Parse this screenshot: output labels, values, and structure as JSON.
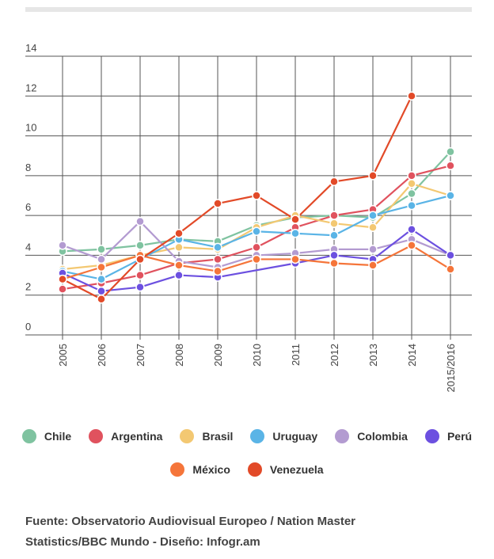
{
  "chart_data": {
    "type": "line",
    "categories": [
      "2005",
      "2006",
      "2007",
      "2008",
      "2009",
      "2010",
      "2011",
      "2012",
      "2013",
      "2014",
      "2015/2016"
    ],
    "ylim": [
      0,
      14
    ],
    "yticks": [
      0,
      2,
      4,
      6,
      8,
      10,
      12,
      14
    ],
    "grid": true,
    "series": [
      {
        "name": "Chile",
        "color": "#7fc3a0",
        "values": [
          4.2,
          4.3,
          4.5,
          4.8,
          4.7,
          5.5,
          5.9,
          6.0,
          5.9,
          7.1,
          9.2
        ]
      },
      {
        "name": "Argentina",
        "color": "#e0525e",
        "values": [
          2.3,
          2.6,
          3.0,
          3.6,
          3.8,
          4.4,
          5.4,
          6.0,
          6.3,
          8.0,
          8.5
        ]
      },
      {
        "name": "Brasil",
        "color": "#f3c872",
        "values": [
          3.3,
          3.5,
          4.0,
          4.4,
          4.3,
          5.4,
          6.0,
          5.6,
          5.4,
          7.6,
          7.0
        ]
      },
      {
        "name": "Uruguay",
        "color": "#5ab4e6",
        "values": [
          3.2,
          2.8,
          3.8,
          4.8,
          4.4,
          5.2,
          5.1,
          5.0,
          6.0,
          6.5,
          7.0
        ]
      },
      {
        "name": "Colombia",
        "color": "#b39bd1",
        "values": [
          4.5,
          3.8,
          5.7,
          3.7,
          3.4,
          4.0,
          4.1,
          4.3,
          4.3,
          4.8,
          4.0
        ]
      },
      {
        "name": "Perú",
        "color": "#6c50e0",
        "values": [
          3.1,
          2.2,
          2.4,
          3.0,
          2.9,
          null,
          3.6,
          4.0,
          3.8,
          5.3,
          4.0
        ]
      },
      {
        "name": "México",
        "color": "#f5753a",
        "values": [
          2.8,
          3.4,
          4.0,
          3.5,
          3.2,
          3.8,
          3.8,
          3.6,
          3.5,
          4.5,
          3.3
        ]
      },
      {
        "name": "Venezuela",
        "color": "#e24a28",
        "values": [
          2.8,
          1.8,
          3.8,
          5.1,
          6.6,
          7.0,
          5.8,
          7.7,
          8.0,
          12.0,
          null
        ]
      }
    ]
  },
  "source": {
    "line1": "Fuente: Observatorio Audiovisual Europeo / Nation Master",
    "line2": "Statistics/BBC Mundo - Diseño: Infogr.am"
  }
}
